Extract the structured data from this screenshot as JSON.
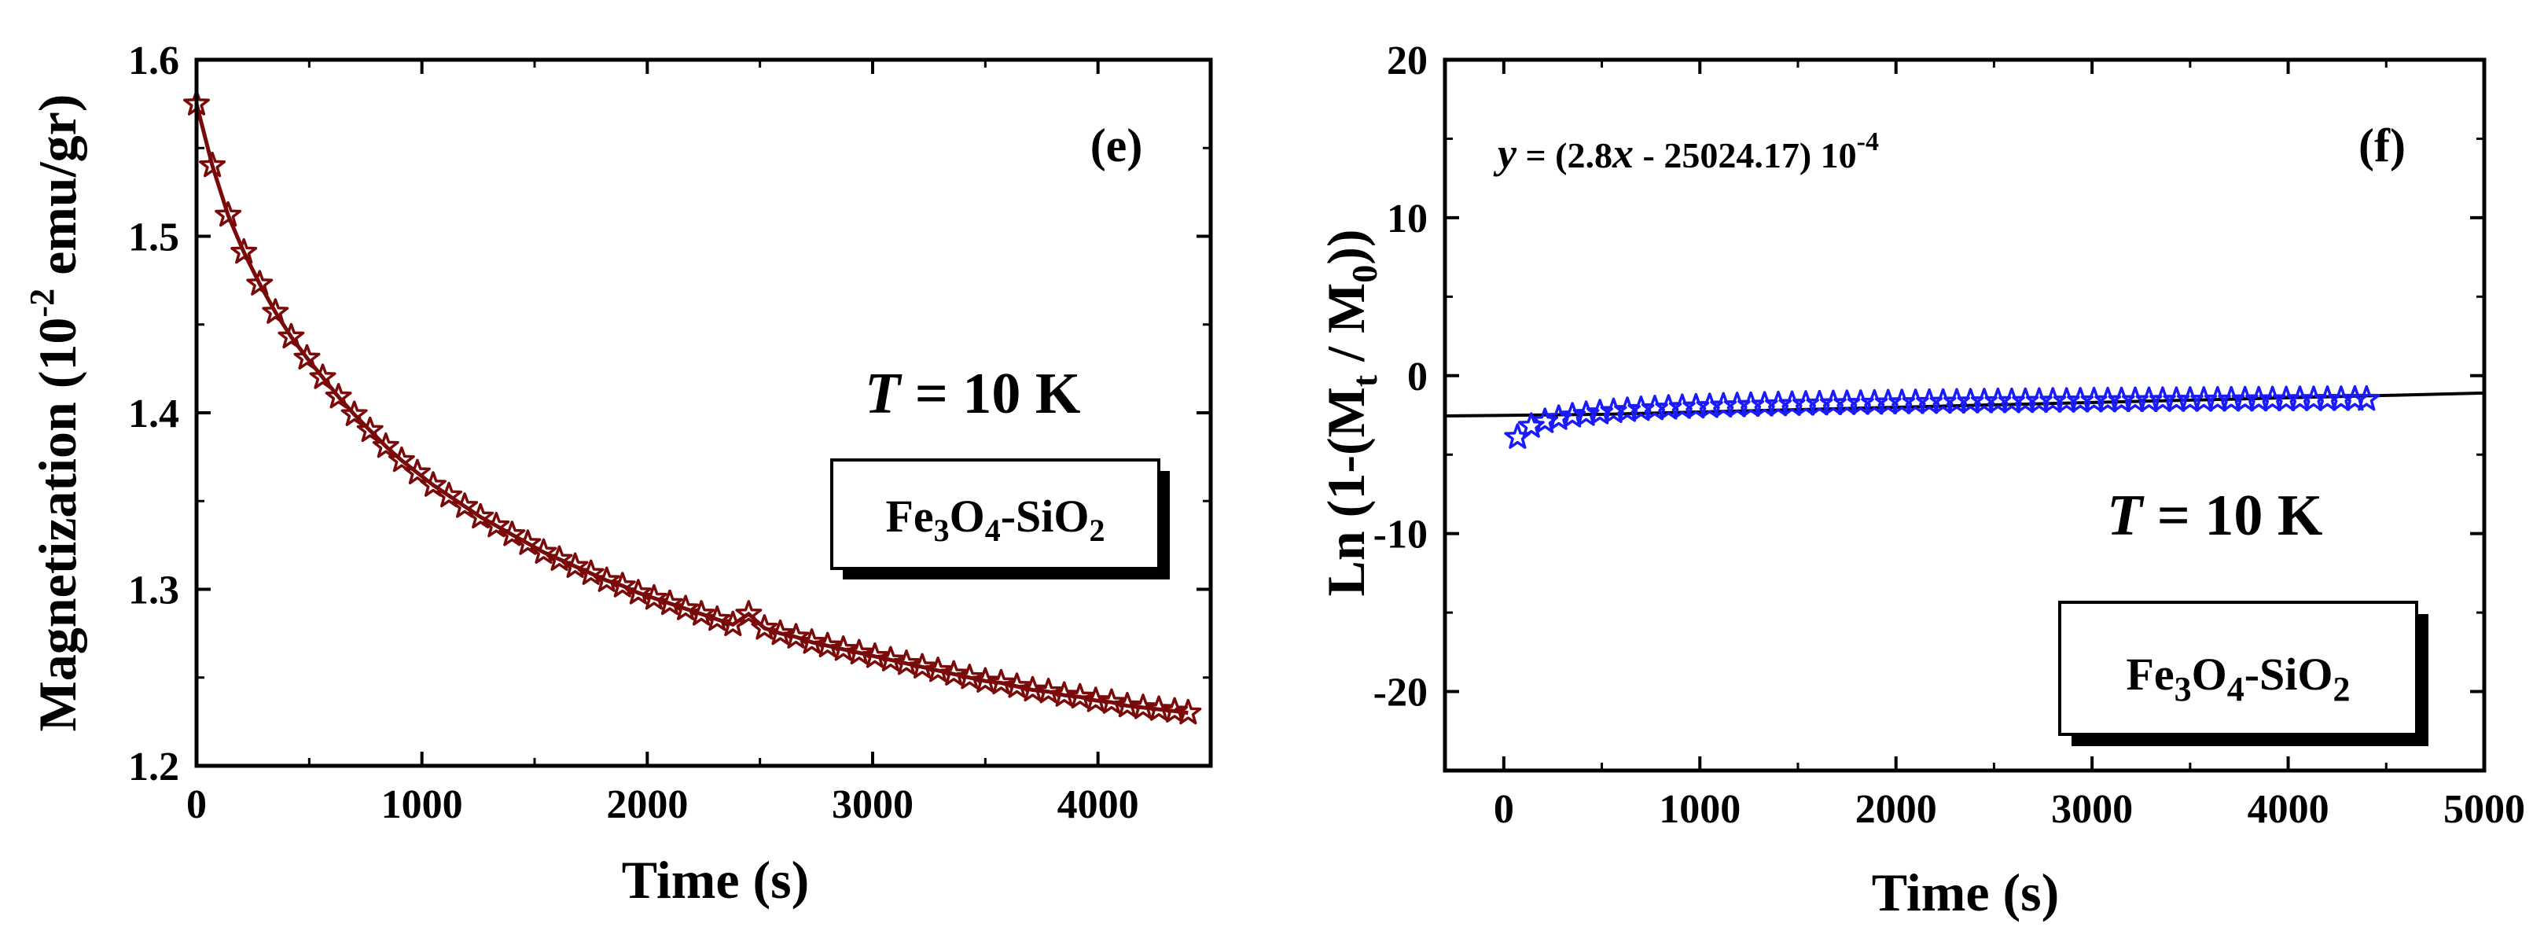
{
  "chart_data": [
    {
      "type": "line",
      "panel_label": "(e)",
      "xlabel": "Time (s)",
      "ylabel": {
        "prefix": "Magnetization (10",
        "exp": "-2",
        "suffix": " emu/gr)"
      },
      "xlim": [
        0,
        4500
      ],
      "ylim": [
        1.2,
        1.6
      ],
      "xticks": [
        "0",
        "1000",
        "2000",
        "3000",
        "4000"
      ],
      "yticks": [
        "1.2",
        "1.3",
        "1.4",
        "1.5",
        "1.6"
      ],
      "annotation": {
        "var": "T",
        "rest": " = 10 K"
      },
      "legend": {
        "a": "Fe",
        "b": "3",
        "c": "O",
        "d": "4",
        "e": "-SiO",
        "f": "2"
      },
      "series": [
        {
          "name": "Fe3O4-SiO2 magnetization",
          "color": "#7a0a0a",
          "marker": "star",
          "x": [
            0,
            70,
            140,
            210,
            280,
            350,
            420,
            490,
            560,
            630,
            700,
            770,
            840,
            910,
            980,
            1050,
            1120,
            1190,
            1260,
            1330,
            1400,
            1470,
            1540,
            1610,
            1680,
            1750,
            1820,
            1890,
            1960,
            2030,
            2100,
            2170,
            2240,
            2310,
            2380,
            2450,
            2520,
            2590,
            2660,
            2730,
            2800,
            2870,
            2940,
            3010,
            3080,
            3150,
            3220,
            3290,
            3360,
            3430,
            3500,
            3570,
            3640,
            3710,
            3780,
            3850,
            3920,
            3990,
            4060,
            4130,
            4200,
            4270,
            4340,
            4400
          ],
          "y": [
            1.575,
            1.54,
            1.512,
            1.491,
            1.473,
            1.457,
            1.443,
            1.431,
            1.42,
            1.409,
            1.399,
            1.39,
            1.381,
            1.373,
            1.366,
            1.359,
            1.353,
            1.347,
            1.341,
            1.336,
            1.331,
            1.326,
            1.321,
            1.317,
            1.313,
            1.309,
            1.305,
            1.302,
            1.298,
            1.295,
            1.292,
            1.289,
            1.286,
            1.283,
            1.28,
            1.286,
            1.278,
            1.275,
            1.273,
            1.27,
            1.268,
            1.266,
            1.264,
            1.262,
            1.26,
            1.258,
            1.256,
            1.254,
            1.252,
            1.25,
            1.248,
            1.247,
            1.245,
            1.243,
            1.242,
            1.24,
            1.239,
            1.237,
            1.236,
            1.234,
            1.233,
            1.232,
            1.231,
            1.23
          ]
        }
      ]
    },
    {
      "type": "scatter",
      "panel_label": "(f)",
      "xlabel": "Time (s)",
      "ylabel": {
        "prefix": "Ln (1-(M",
        "s1": "t",
        "mid": " / M",
        "s2": "0",
        "suffix": "))"
      },
      "xlim": [
        -300,
        5000
      ],
      "ylim": [
        -25,
        20
      ],
      "xticks": [
        "0",
        "1000",
        "2000",
        "3000",
        "4000",
        "5000"
      ],
      "yticks": [
        "-20",
        "-10",
        "0",
        "10",
        "20"
      ],
      "equation": {
        "y": "y",
        "a": " = (2.8",
        "x": "x",
        "b": " - 25024.17) 10",
        "exp": "-4"
      },
      "annotation": {
        "var": "T",
        "rest": " = 10 K"
      },
      "legend": {
        "a": "Fe",
        "b": "3",
        "c": "O",
        "d": "4",
        "e": "-SiO",
        "f": "2"
      },
      "fit": {
        "color": "#000000",
        "x": [
          -300,
          500,
          1000,
          1500,
          2000,
          2500,
          3000,
          3500,
          4000,
          4500,
          5000
        ],
        "y": [
          -2.55,
          -2.45,
          -2.3,
          -2.15,
          -2.0,
          -1.85,
          -1.7,
          -1.55,
          -1.4,
          -1.25,
          -1.1
        ]
      },
      "series": [
        {
          "name": "Ln(1-(Mt/M0)) data",
          "color": "#1a1aff",
          "marker": "star",
          "x": [
            70,
            140,
            210,
            280,
            350,
            420,
            490,
            560,
            630,
            700,
            770,
            840,
            910,
            980,
            1050,
            1120,
            1190,
            1260,
            1330,
            1400,
            1470,
            1540,
            1610,
            1680,
            1750,
            1820,
            1890,
            1960,
            2030,
            2100,
            2170,
            2240,
            2310,
            2380,
            2450,
            2520,
            2590,
            2660,
            2730,
            2800,
            2870,
            2940,
            3010,
            3080,
            3150,
            3220,
            3290,
            3360,
            3430,
            3500,
            3570,
            3640,
            3710,
            3780,
            3850,
            3920,
            3990,
            4060,
            4130,
            4200,
            4270,
            4340,
            4400
          ],
          "y": [
            -3.9,
            -3.2,
            -2.9,
            -2.7,
            -2.55,
            -2.45,
            -2.35,
            -2.27,
            -2.2,
            -2.14,
            -2.09,
            -2.05,
            -2.01,
            -1.98,
            -1.95,
            -1.92,
            -1.9,
            -1.88,
            -1.86,
            -1.84,
            -1.82,
            -1.8,
            -1.79,
            -1.77,
            -1.76,
            -1.75,
            -1.74,
            -1.72,
            -1.71,
            -1.7,
            -1.69,
            -1.68,
            -1.67,
            -1.66,
            -1.65,
            -1.64,
            -1.64,
            -1.63,
            -1.62,
            -1.61,
            -1.61,
            -1.6,
            -1.59,
            -1.59,
            -1.58,
            -1.57,
            -1.57,
            -1.56,
            -1.56,
            -1.55,
            -1.55,
            -1.54,
            -1.54,
            -1.53,
            -1.53,
            -1.52,
            -1.52,
            -1.51,
            -1.51,
            -1.5,
            -1.5,
            -1.49,
            -1.49
          ]
        }
      ]
    }
  ]
}
